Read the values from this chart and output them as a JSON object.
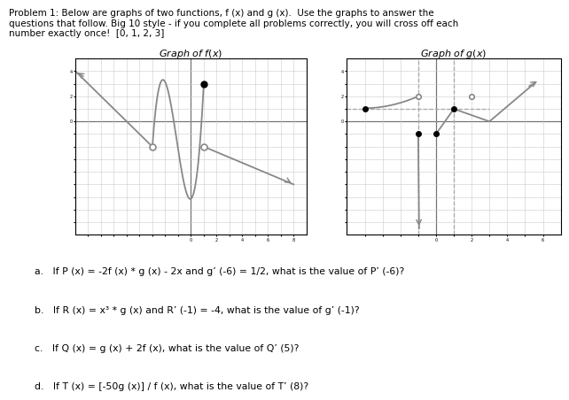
{
  "title_line1": "Problem 1: Below are graphs of two functions, f (x) and g (x).  Use the graphs to answer the",
  "title_line2": "questions that follow. Big 10 style - if you complete all problems correctly, you will cross off each",
  "title_line3": "number exactly once!  [0, 1, 2, 3]",
  "graph_f_title": "Graph of $f(x)$",
  "graph_g_title": "Graph of $g(x)$",
  "questions": [
    "a.   If P (x) = -2f (x) * g (x) - 2x and g’ (-6) = 1/2, what is the value of P’ (-6)?",
    "b.   If R (x) = x³ * g (x) and R’ (-1) = -4, what is the value of g’ (-1)?",
    "c.   If Q (x) = g (x) + 2f (x), what is the value of Q’ (5)?",
    "d.   If T (x) = [-50g (x)] / f (x), what is the value of T’ (8)?"
  ],
  "bg_color": "#ffffff",
  "text_color": "#000000",
  "grid_color": "#cccccc",
  "axis_color": "#000000",
  "line_color": "#888888"
}
